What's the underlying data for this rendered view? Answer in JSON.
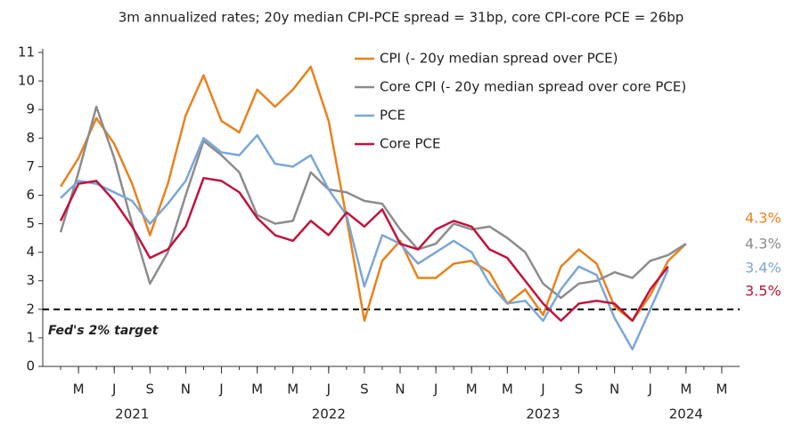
{
  "chart_data": {
    "type": "line",
    "title": "3m annualized rates; 20y median CPI-PCE spread = 31bp, core CPI-core PCE = 26bp",
    "x": [
      "2021-04",
      "2021-05",
      "2021-06",
      "2021-07",
      "2021-08",
      "2021-09",
      "2021-10",
      "2021-11",
      "2021-12",
      "2022-01",
      "2022-02",
      "2022-03",
      "2022-04",
      "2022-05",
      "2022-06",
      "2022-07",
      "2022-08",
      "2022-09",
      "2022-10",
      "2022-11",
      "2022-12",
      "2023-01",
      "2023-02",
      "2023-03",
      "2023-04",
      "2023-05",
      "2023-06",
      "2023-07",
      "2023-08",
      "2023-09",
      "2023-10",
      "2023-11",
      "2023-12",
      "2024-01",
      "2024-02",
      "2024-03"
    ],
    "series": [
      {
        "name": "CPI (- 20y median spread over PCE)",
        "color": "#e8821e",
        "values": [
          6.3,
          7.3,
          8.7,
          7.8,
          6.4,
          4.6,
          6.4,
          8.8,
          10.2,
          8.6,
          8.2,
          9.7,
          9.1,
          9.7,
          10.5,
          8.6,
          5.2,
          1.6,
          3.7,
          4.4,
          3.1,
          3.1,
          3.6,
          3.7,
          3.3,
          2.2,
          2.7,
          1.8,
          3.5,
          4.1,
          3.6,
          2.1,
          1.6,
          2.5,
          3.7,
          4.3
        ],
        "value_labels": [
          null,
          null,
          null,
          null,
          null,
          null,
          null,
          null,
          null,
          null,
          null,
          null,
          null,
          null,
          null,
          null,
          null,
          null,
          null,
          null,
          null,
          null,
          null,
          null,
          null,
          null,
          null,
          null,
          null,
          null,
          null,
          null,
          null,
          null,
          null,
          "4.3%"
        ]
      },
      {
        "name": "Core CPI (- 20y median spread over core PCE)",
        "color": "#8c8c8c",
        "values": [
          4.7,
          6.8,
          9.1,
          7.3,
          5.0,
          2.9,
          4.0,
          6.0,
          7.9,
          7.4,
          6.8,
          5.3,
          5.0,
          5.1,
          6.8,
          6.2,
          6.1,
          5.8,
          5.7,
          4.8,
          4.1,
          4.3,
          5.0,
          4.8,
          4.9,
          4.5,
          4.0,
          2.9,
          2.4,
          2.9,
          3.0,
          3.3,
          3.1,
          3.7,
          3.9,
          4.3
        ],
        "value_labels": [
          null,
          null,
          null,
          null,
          null,
          null,
          null,
          null,
          null,
          null,
          null,
          null,
          null,
          null,
          null,
          null,
          null,
          null,
          null,
          null,
          null,
          null,
          null,
          null,
          null,
          null,
          null,
          null,
          null,
          null,
          null,
          null,
          null,
          null,
          null,
          "4.3%"
        ]
      },
      {
        "name": "PCE",
        "color": "#7ba7d6",
        "values": [
          5.9,
          6.5,
          6.4,
          6.1,
          5.8,
          5.0,
          5.7,
          6.5,
          8.0,
          7.5,
          7.4,
          8.1,
          7.1,
          7.0,
          7.4,
          6.2,
          5.3,
          2.8,
          4.6,
          4.3,
          3.6,
          4.0,
          4.4,
          4.0,
          2.9,
          2.2,
          2.3,
          1.6,
          2.7,
          3.5,
          3.2,
          1.7,
          0.6,
          2.0,
          3.4,
          null
        ],
        "value_labels": [
          null,
          null,
          null,
          null,
          null,
          null,
          null,
          null,
          null,
          null,
          null,
          null,
          null,
          null,
          null,
          null,
          null,
          null,
          null,
          null,
          null,
          null,
          null,
          null,
          null,
          null,
          null,
          null,
          null,
          null,
          null,
          null,
          null,
          null,
          "3.4%",
          null
        ]
      },
      {
        "name": "Core PCE",
        "color": "#c0143c",
        "values": [
          5.1,
          6.4,
          6.5,
          5.8,
          4.9,
          3.8,
          4.1,
          4.9,
          6.6,
          6.5,
          6.1,
          5.2,
          4.6,
          4.4,
          5.1,
          4.6,
          5.4,
          4.9,
          5.5,
          4.3,
          4.1,
          4.8,
          5.1,
          4.9,
          4.1,
          3.8,
          3.0,
          2.2,
          1.6,
          2.2,
          2.3,
          2.2,
          1.6,
          2.7,
          3.5,
          null
        ],
        "value_labels": [
          null,
          null,
          null,
          null,
          null,
          null,
          null,
          null,
          null,
          null,
          null,
          null,
          null,
          null,
          null,
          null,
          null,
          null,
          null,
          null,
          null,
          null,
          null,
          null,
          null,
          null,
          null,
          null,
          null,
          null,
          null,
          null,
          null,
          null,
          "3.5%",
          null
        ]
      }
    ],
    "reference_line": {
      "value": 2,
      "label": "Fed's 2% target"
    },
    "xlim": [
      "2021-03",
      "2024-06"
    ],
    "xticks": [
      {
        "value": "2021-05",
        "label": "M"
      },
      {
        "value": "2021-07",
        "label": "J"
      },
      {
        "value": "2021-09",
        "label": "S"
      },
      {
        "value": "2021-11",
        "label": "N"
      },
      {
        "value": "2022-01",
        "label": "J"
      },
      {
        "value": "2022-03",
        "label": "M"
      },
      {
        "value": "2022-05",
        "label": "M"
      },
      {
        "value": "2022-07",
        "label": "J"
      },
      {
        "value": "2022-09",
        "label": "S"
      },
      {
        "value": "2022-11",
        "label": "N"
      },
      {
        "value": "2023-01",
        "label": "J"
      },
      {
        "value": "2023-03",
        "label": "M"
      },
      {
        "value": "2023-05",
        "label": "M"
      },
      {
        "value": "2023-07",
        "label": "J"
      },
      {
        "value": "2023-09",
        "label": "S"
      },
      {
        "value": "2023-11",
        "label": "N"
      },
      {
        "value": "2024-01",
        "label": "J"
      },
      {
        "value": "2024-03",
        "label": "M"
      },
      {
        "value": "2024-05",
        "label": "M"
      }
    ],
    "year_labels": [
      {
        "value": "2021-08",
        "label": "2021"
      },
      {
        "value": "2022-07",
        "label": "2022"
      },
      {
        "value": "2023-07",
        "label": "2023"
      },
      {
        "value": "2024-03",
        "label": "2024"
      }
    ],
    "ylim": [
      0,
      11
    ],
    "yticks": [
      0,
      1,
      2,
      3,
      4,
      5,
      6,
      7,
      8,
      9,
      10,
      11
    ]
  }
}
